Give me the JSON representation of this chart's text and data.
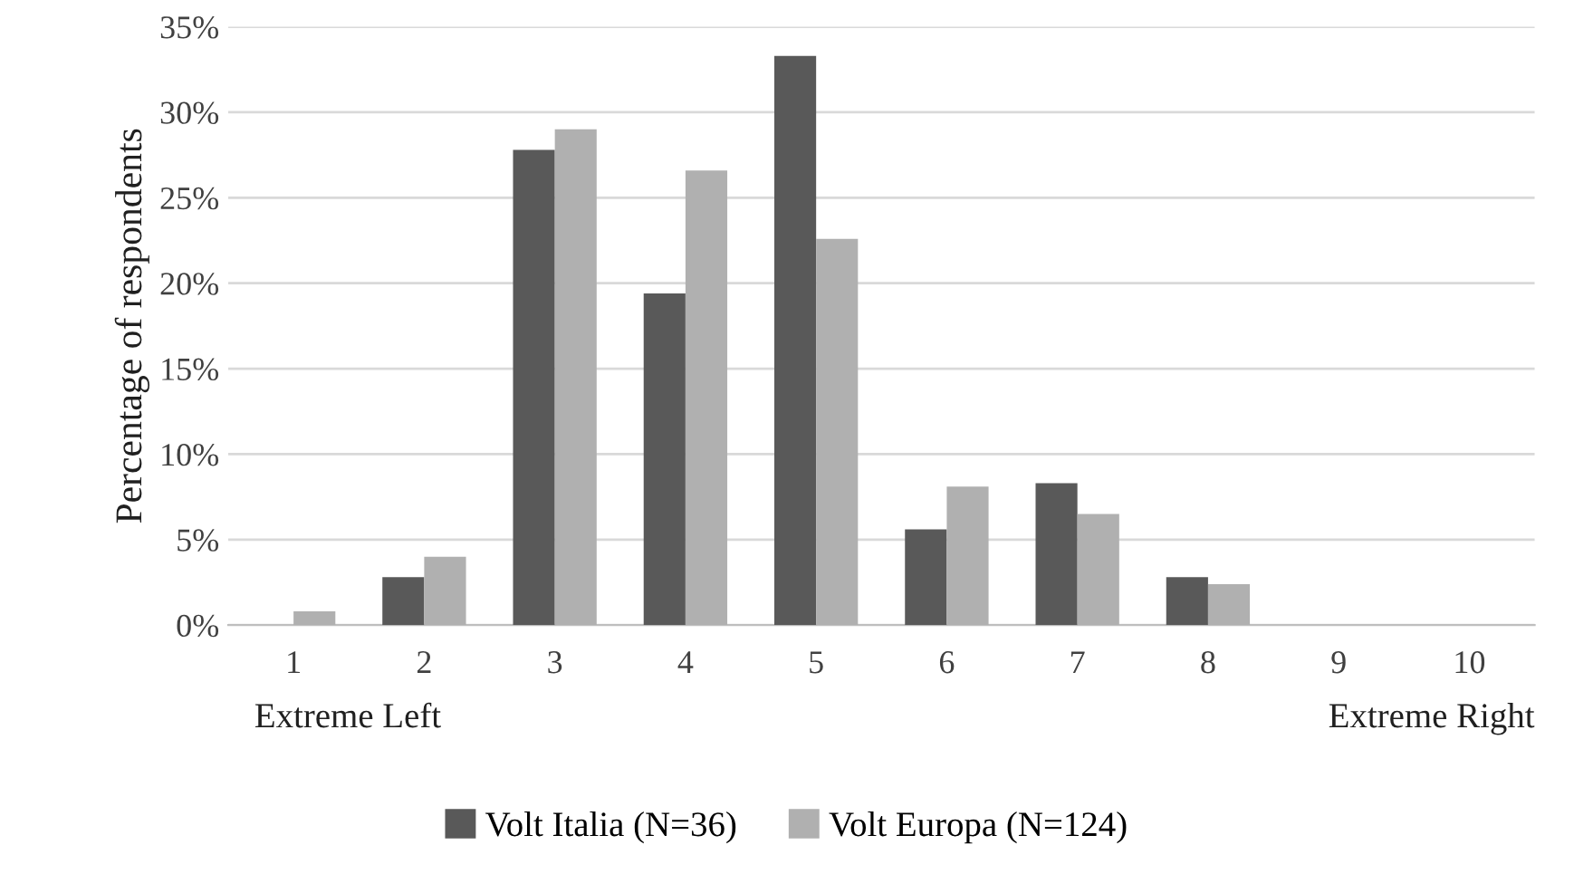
{
  "chart_data": {
    "type": "bar",
    "ylabel": "Percentage of respondents",
    "categories": [
      "1",
      "2",
      "3",
      "4",
      "5",
      "6",
      "7",
      "8",
      "9",
      "10"
    ],
    "series": [
      {
        "name": "Volt Italia (N=36)",
        "color": "#595959",
        "values": [
          0,
          2.8,
          27.8,
          19.4,
          33.3,
          5.6,
          8.3,
          2.8,
          0,
          0
        ]
      },
      {
        "name": "Volt Europa (N=124)",
        "color": "#b0b0b0",
        "values": [
          0.8,
          4.0,
          29.0,
          26.6,
          22.6,
          8.1,
          6.5,
          2.4,
          0,
          0
        ]
      }
    ],
    "ylim": [
      0,
      35
    ],
    "yticks": [
      {
        "value": 0,
        "label": "0%"
      },
      {
        "value": 5,
        "label": "5%"
      },
      {
        "value": 10,
        "label": "10%"
      },
      {
        "value": 15,
        "label": "15%"
      },
      {
        "value": 20,
        "label": "20%"
      },
      {
        "value": 25,
        "label": "25%"
      },
      {
        "value": 30,
        "label": "30%"
      },
      {
        "value": 35,
        "label": "35%"
      }
    ],
    "annotations": [
      "Extreme Left",
      "Extreme Right"
    ],
    "grid": "y",
    "legend": "bottom"
  }
}
